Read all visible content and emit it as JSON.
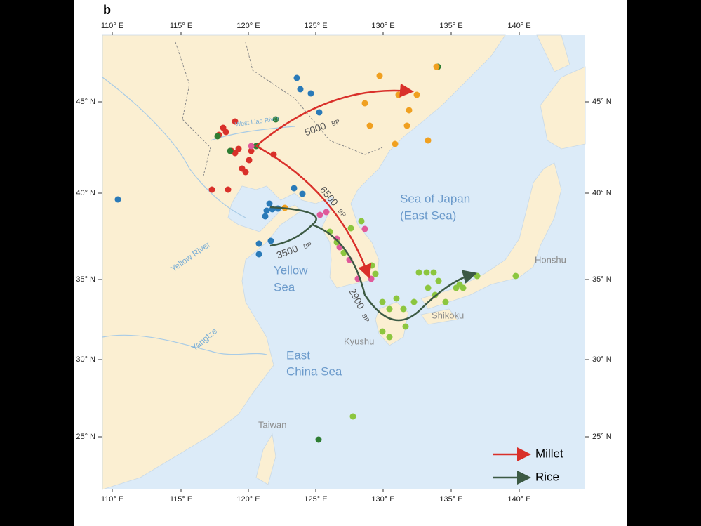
{
  "panel_label": "b",
  "lon_ticks": [
    "110° E",
    "115° E",
    "120° E",
    "125° E",
    "130° E",
    "135° E",
    "140° E"
  ],
  "lat_ticks": [
    "45° N",
    "40° N",
    "35° N",
    "30° N",
    "25° N"
  ],
  "seas": {
    "japan": [
      "Sea of Japan",
      "(East Sea)"
    ],
    "yellow": [
      "Yellow",
      "Sea"
    ],
    "east_china": [
      "East",
      "China Sea"
    ]
  },
  "places": {
    "honshu": "Honshu",
    "shikoku": "Shikoku",
    "kyushu": "Kyushu",
    "taiwan": "Taiwan"
  },
  "rivers": {
    "west_liao": "West Liao River",
    "yellow": "Yellow River",
    "yangtze": "Yangtze"
  },
  "dates": {
    "millet_north": "5000",
    "millet_south": "6500",
    "rice_north": "3500",
    "rice_south": "2900",
    "unit": "BP"
  },
  "legend": {
    "millet": "Millet",
    "rice": "Rice"
  }
}
